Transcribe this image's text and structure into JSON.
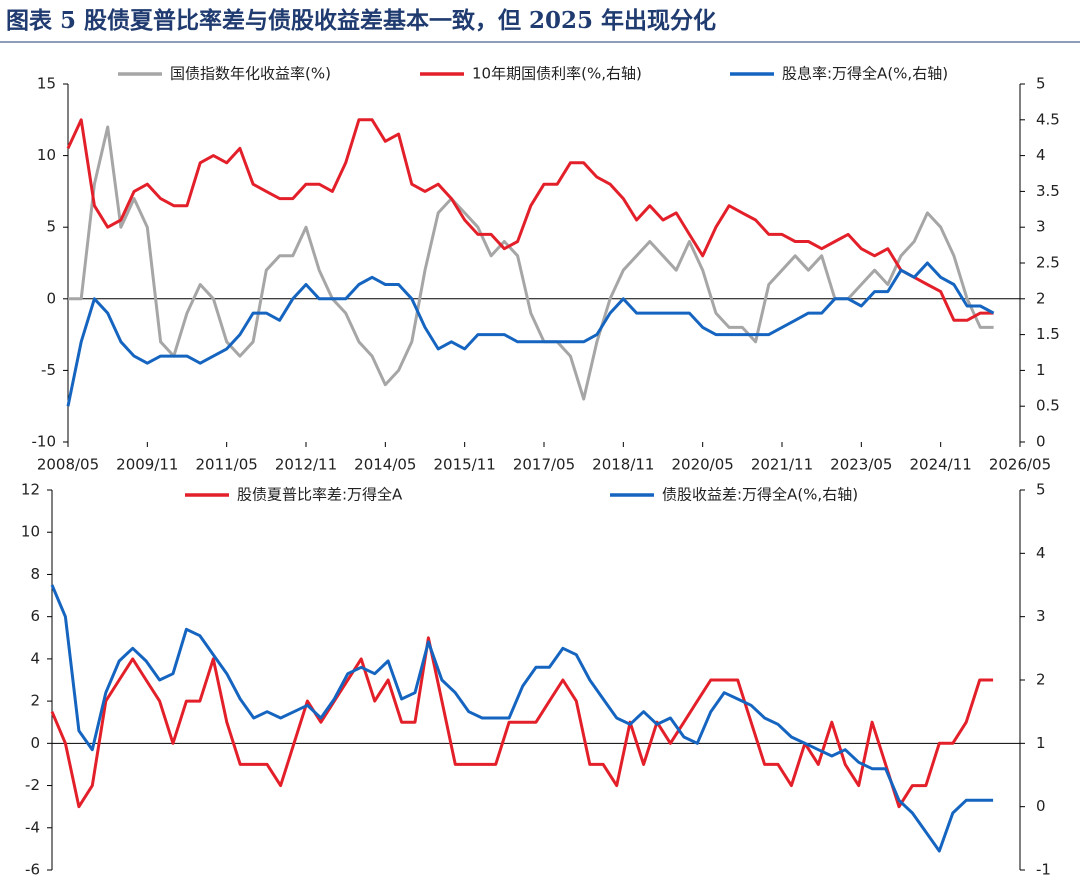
{
  "title": "图表 5   股债夏普比率差与债股收益差基本一致，但 2025 年出现分化",
  "chart_data": [
    {
      "type": "line",
      "x": [
        "2008/05",
        "2008/08",
        "2008/11",
        "2009/02",
        "2009/05",
        "2009/08",
        "2009/11",
        "2010/02",
        "2010/05",
        "2010/08",
        "2010/11",
        "2011/02",
        "2011/05",
        "2011/08",
        "2011/11",
        "2012/02",
        "2012/05",
        "2012/08",
        "2012/11",
        "2013/02",
        "2013/05",
        "2013/08",
        "2013/11",
        "2014/02",
        "2014/05",
        "2014/08",
        "2014/11",
        "2015/02",
        "2015/05",
        "2015/08",
        "2015/11",
        "2016/02",
        "2016/05",
        "2016/08",
        "2016/11",
        "2017/02",
        "2017/05",
        "2017/08",
        "2017/11",
        "2018/02",
        "2018/05",
        "2018/08",
        "2018/11",
        "2019/02",
        "2019/05",
        "2019/08",
        "2019/11",
        "2020/02",
        "2020/05",
        "2020/08",
        "2020/11",
        "2021/02",
        "2021/05",
        "2021/08",
        "2021/11",
        "2022/02",
        "2022/05",
        "2022/08",
        "2022/11",
        "2023/02",
        "2023/05",
        "2023/08",
        "2023/11",
        "2024/02",
        "2024/05",
        "2024/08",
        "2024/11",
        "2025/02",
        "2025/05",
        "2025/08",
        "2025/11"
      ],
      "xlim": [
        "2008/05",
        "2026/05"
      ],
      "xticks": [
        "2008/05",
        "2009/11",
        "2011/05",
        "2012/11",
        "2014/05",
        "2015/11",
        "2017/05",
        "2018/11",
        "2020/05",
        "2021/11",
        "2023/05",
        "2024/11",
        "2026/05"
      ],
      "ylim": [
        -10,
        15
      ],
      "yticks": [
        -10,
        -5,
        0,
        5,
        10,
        15
      ],
      "y2lim": [
        0,
        5
      ],
      "y2ticks": [
        0,
        0.5,
        1,
        1.5,
        2,
        2.5,
        3,
        3.5,
        4,
        4.5,
        5
      ],
      "series": [
        {
          "name": "国债指数年化收益率(%)",
          "color": "#a6a6a6",
          "values": [
            0,
            0,
            8,
            12,
            5,
            7,
            5,
            -3,
            -4,
            -1,
            1,
            0,
            -3,
            -4,
            -3,
            2,
            3,
            3,
            5,
            2,
            0,
            -1,
            -3,
            -4,
            -6,
            -5,
            -3,
            2,
            6,
            7,
            6,
            5,
            3,
            4,
            3,
            -1,
            -3,
            -3,
            -4,
            -7,
            -3,
            0,
            2,
            3,
            4,
            3,
            2,
            4,
            2,
            -1,
            -2,
            -2,
            -3,
            1,
            2,
            3,
            2,
            3,
            0,
            0,
            1,
            2,
            1,
            3,
            4,
            6,
            5,
            3,
            0,
            -2,
            -2
          ]
        },
        {
          "name": "10年期国债利率(%,右轴)",
          "color": "#e3202a",
          "axis": "y2",
          "values": [
            4.1,
            4.5,
            3.3,
            3.0,
            3.1,
            3.5,
            3.6,
            3.4,
            3.3,
            3.3,
            3.9,
            4.0,
            3.9,
            4.1,
            3.6,
            3.5,
            3.4,
            3.4,
            3.6,
            3.6,
            3.5,
            3.9,
            4.5,
            4.5,
            4.2,
            4.3,
            3.6,
            3.5,
            3.6,
            3.4,
            3.1,
            2.9,
            2.9,
            2.7,
            2.8,
            3.3,
            3.6,
            3.6,
            3.9,
            3.9,
            3.7,
            3.6,
            3.4,
            3.1,
            3.3,
            3.1,
            3.2,
            2.9,
            2.6,
            3.0,
            3.3,
            3.2,
            3.1,
            2.9,
            2.9,
            2.8,
            2.8,
            2.7,
            2.8,
            2.9,
            2.7,
            2.6,
            2.7,
            2.4,
            2.3,
            2.2,
            2.1,
            1.7,
            1.7,
            1.8,
            1.8
          ]
        },
        {
          "name": "股息率:万得全A(%,右轴)",
          "color": "#1565c0",
          "axis": "y2",
          "values": [
            0.5,
            1.4,
            2.0,
            1.8,
            1.4,
            1.2,
            1.1,
            1.2,
            1.2,
            1.2,
            1.1,
            1.2,
            1.3,
            1.5,
            1.8,
            1.8,
            1.7,
            2.0,
            2.2,
            2.0,
            2.0,
            2.0,
            2.2,
            2.3,
            2.2,
            2.2,
            2.0,
            1.6,
            1.3,
            1.4,
            1.3,
            1.5,
            1.5,
            1.5,
            1.4,
            1.4,
            1.4,
            1.4,
            1.4,
            1.4,
            1.5,
            1.8,
            2.0,
            1.8,
            1.8,
            1.8,
            1.8,
            1.8,
            1.6,
            1.5,
            1.5,
            1.5,
            1.5,
            1.5,
            1.6,
            1.7,
            1.8,
            1.8,
            2.0,
            2.0,
            1.9,
            2.1,
            2.1,
            2.4,
            2.3,
            2.5,
            2.3,
            2.2,
            1.9,
            1.9,
            1.8
          ]
        }
      ]
    },
    {
      "type": "line",
      "x": [
        "2008/05",
        "2008/08",
        "2008/11",
        "2009/02",
        "2009/05",
        "2009/08",
        "2009/11",
        "2010/02",
        "2010/05",
        "2010/08",
        "2010/11",
        "2011/02",
        "2011/05",
        "2011/08",
        "2011/11",
        "2012/02",
        "2012/05",
        "2012/08",
        "2012/11",
        "2013/02",
        "2013/05",
        "2013/08",
        "2013/11",
        "2014/02",
        "2014/05",
        "2014/08",
        "2014/11",
        "2015/02",
        "2015/05",
        "2015/08",
        "2015/11",
        "2016/02",
        "2016/05",
        "2016/08",
        "2016/11",
        "2017/02",
        "2017/05",
        "2017/08",
        "2017/11",
        "2018/02",
        "2018/05",
        "2018/08",
        "2018/11",
        "2019/02",
        "2019/05",
        "2019/08",
        "2019/11",
        "2020/02",
        "2020/05",
        "2020/08",
        "2020/11",
        "2021/02",
        "2021/05",
        "2021/08",
        "2021/11",
        "2022/02",
        "2022/05",
        "2022/08",
        "2022/11",
        "2023/02",
        "2023/05",
        "2023/08",
        "2023/11",
        "2024/02",
        "2024/05",
        "2024/08",
        "2024/11",
        "2025/02",
        "2025/05",
        "2025/08",
        "2025/11"
      ],
      "xlim": [
        "2008/05",
        "2026/05"
      ],
      "ylim": [
        -6,
        12
      ],
      "yticks": [
        -6,
        -4,
        -2,
        0,
        2,
        4,
        6,
        8,
        10,
        12
      ],
      "y2lim": [
        -1,
        5
      ],
      "y2ticks": [
        -1,
        0,
        1,
        2,
        3,
        4,
        5
      ],
      "series": [
        {
          "name": "股债夏普比率差:万得全A",
          "color": "#e3202a",
          "values": [
            1.5,
            0,
            -3,
            -2,
            2,
            3,
            4,
            3,
            2,
            0,
            2,
            2,
            4,
            1,
            -1,
            -1,
            -1,
            -2,
            0,
            2,
            1,
            2,
            3,
            4,
            2,
            3,
            1,
            1,
            5,
            2,
            -1,
            -1,
            -1,
            -1,
            1,
            1,
            1,
            2,
            3,
            2,
            -1,
            -1,
            -2,
            1,
            -1,
            1,
            0,
            1,
            2,
            3,
            3,
            3,
            1,
            -1,
            -1,
            -2,
            0,
            -1,
            1,
            -1,
            -2,
            1,
            -1,
            -3,
            -2,
            -2,
            0,
            0,
            1,
            3,
            3
          ]
        },
        {
          "name": "债股收益差:万得全A(%,右轴)",
          "color": "#1565c0",
          "axis": "y2",
          "values": [
            3.5,
            3.0,
            1.2,
            0.9,
            1.8,
            2.3,
            2.5,
            2.3,
            2.0,
            2.1,
            2.8,
            2.7,
            2.4,
            2.1,
            1.7,
            1.4,
            1.5,
            1.4,
            1.5,
            1.6,
            1.4,
            1.7,
            2.1,
            2.2,
            2.1,
            2.3,
            1.7,
            1.8,
            2.6,
            2.0,
            1.8,
            1.5,
            1.4,
            1.4,
            1.4,
            1.9,
            2.2,
            2.2,
            2.5,
            2.4,
            2.0,
            1.7,
            1.4,
            1.3,
            1.5,
            1.3,
            1.4,
            1.1,
            1.0,
            1.5,
            1.8,
            1.7,
            1.6,
            1.4,
            1.3,
            1.1,
            1.0,
            0.9,
            0.8,
            0.9,
            0.7,
            0.6,
            0.6,
            0.1,
            -0.1,
            -0.4,
            -0.7,
            -0.1,
            0.1,
            0.1,
            0.1
          ]
        }
      ]
    }
  ]
}
